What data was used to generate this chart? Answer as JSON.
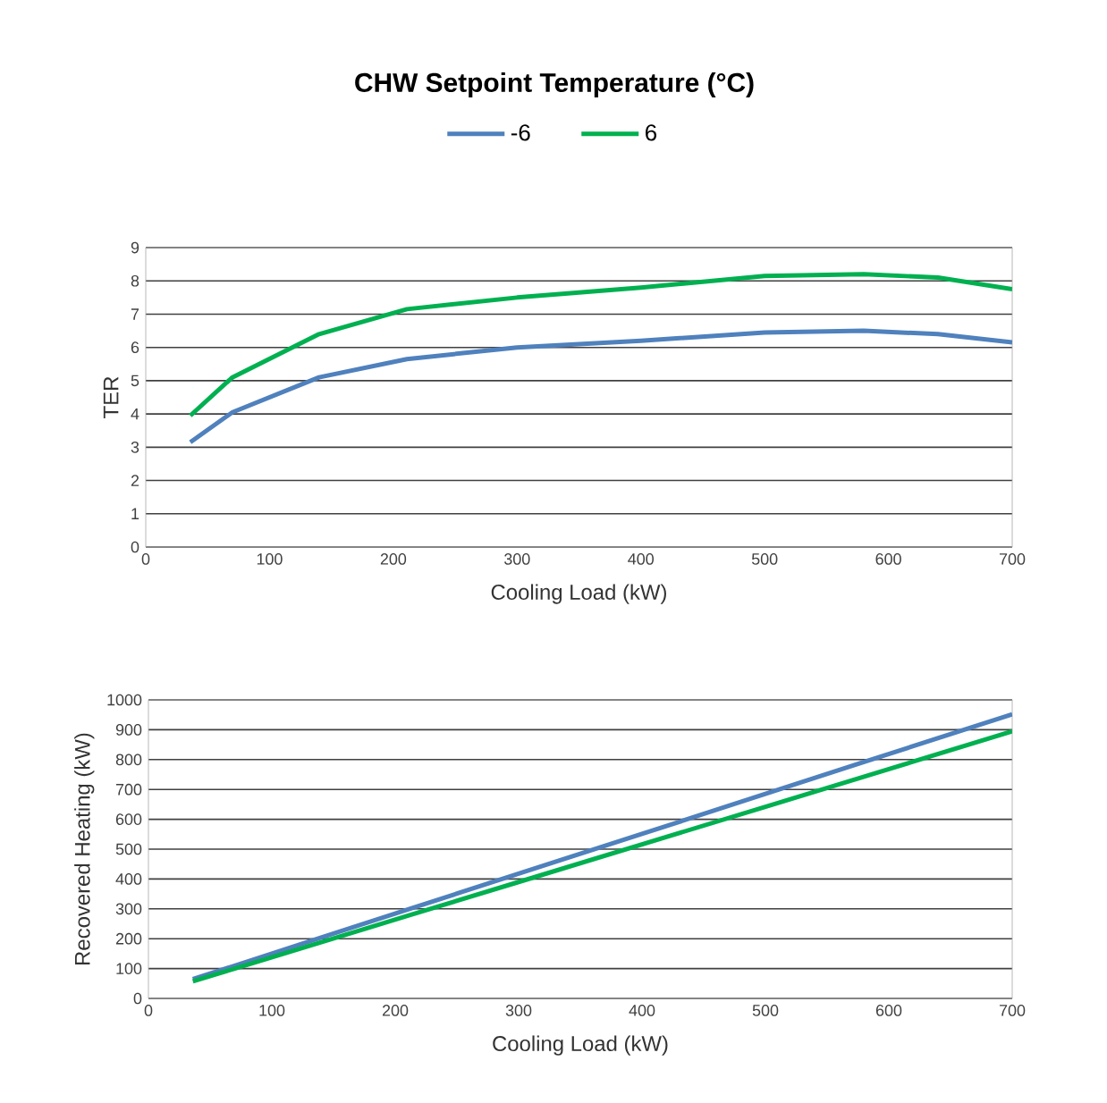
{
  "chart_data": [
    {
      "type": "line",
      "legend_title": "CHW Setpoint Temperature (°C)",
      "legend": "top",
      "xlabel": "Cooling Load (kW)",
      "ylabel": "TER",
      "xlim": [
        0,
        700
      ],
      "xticks": [
        0,
        100,
        200,
        300,
        400,
        500,
        600,
        700
      ],
      "ylim": [
        0,
        9
      ],
      "yticks": [
        0,
        1,
        2,
        3,
        4,
        5,
        6,
        7,
        8,
        9
      ],
      "grid": "y",
      "x": [
        36,
        70,
        140,
        211,
        300,
        400,
        500,
        580,
        640,
        700
      ],
      "series": [
        {
          "name": "-6",
          "color": "#4f81bd",
          "values": [
            3.15,
            4.05,
            5.1,
            5.65,
            6.0,
            6.2,
            6.45,
            6.5,
            6.4,
            6.15
          ]
        },
        {
          "name": "6",
          "color": "#00b050",
          "values": [
            3.95,
            5.1,
            6.4,
            7.15,
            7.5,
            7.8,
            8.15,
            8.2,
            8.1,
            7.75
          ]
        }
      ]
    },
    {
      "type": "line",
      "xlabel": "Cooling Load (kW)",
      "ylabel": "Recovered Heating (kW)",
      "xlim": [
        0,
        700
      ],
      "xticks": [
        0,
        100,
        200,
        300,
        400,
        500,
        600,
        700
      ],
      "ylim": [
        0,
        1000
      ],
      "yticks": [
        0,
        100,
        200,
        300,
        400,
        500,
        600,
        700,
        800,
        900,
        1000
      ],
      "grid": "y",
      "x": [
        36,
        70,
        140,
        211,
        300,
        400,
        500,
        580,
        640,
        700
      ],
      "series": [
        {
          "color": "#4f81bd",
          "values": [
            65,
            110,
            204,
            299,
            418,
            551,
            685,
            792,
            872,
            952
          ]
        },
        {
          "color": "#00b050",
          "values": [
            57,
            100,
            188,
            278,
            390,
            516,
            642,
            743,
            819,
            895
          ]
        }
      ]
    }
  ]
}
